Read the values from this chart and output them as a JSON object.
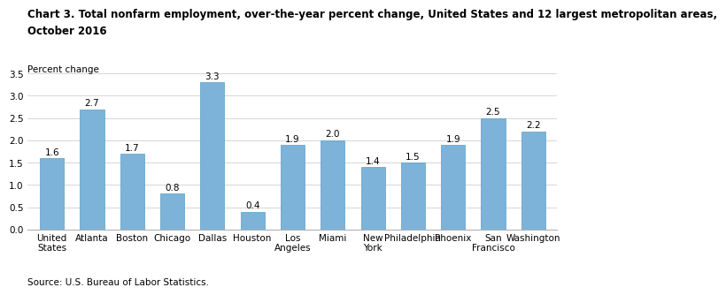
{
  "title_line1": "Chart 3. Total nonfarm employment, over-the-year percent change, United States and 12 largest metropolitan areas,",
  "title_line2": "October 2016",
  "ylabel": "Percent change",
  "source": "Source: U.S. Bureau of Labor Statistics.",
  "categories": [
    "United\nStates",
    "Atlanta",
    "Boston",
    "Chicago",
    "Dallas",
    "Houston",
    "Los\nAngeles",
    "Miami",
    "New\nYork",
    "Philadelphia",
    "Phoenix",
    "San\nFrancisco",
    "Washington"
  ],
  "values": [
    1.6,
    2.7,
    1.7,
    0.8,
    3.3,
    0.4,
    1.9,
    2.0,
    1.4,
    1.5,
    1.9,
    2.5,
    2.2
  ],
  "bar_color": "#7db3d8",
  "bar_edge_color": "#5a9ec5",
  "ylim": [
    0,
    3.5
  ],
  "yticks": [
    0.0,
    0.5,
    1.0,
    1.5,
    2.0,
    2.5,
    3.0,
    3.5
  ],
  "title_fontsize": 8.5,
  "ylabel_fontsize": 7.5,
  "tick_fontsize": 7.5,
  "source_fontsize": 7.5,
  "value_fontsize": 7.5
}
